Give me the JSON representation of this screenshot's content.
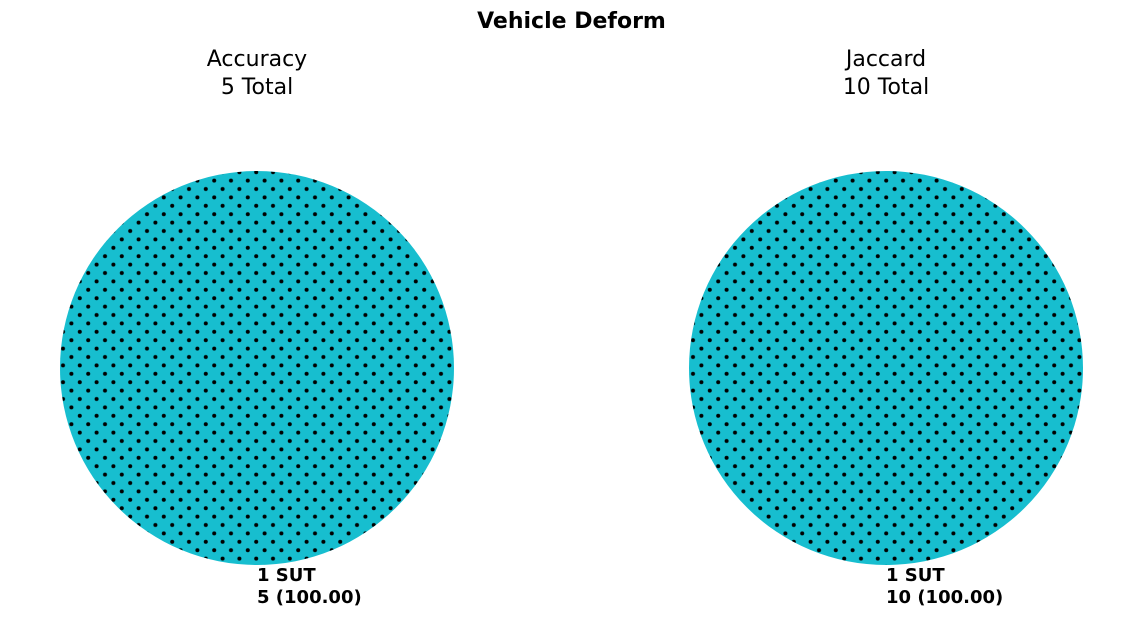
{
  "title": "Vehicle Deform",
  "colors": {
    "slice": "#17becf",
    "hatch_dot": "#000000",
    "background": "#ffffff"
  },
  "chart_data": [
    {
      "type": "pie",
      "title": "Accuracy",
      "subtitle": "5 Total",
      "slices": [
        {
          "label": "1 SUT",
          "value": 5,
          "value_label": "5 (100.00)",
          "color": "#17becf",
          "hatch": "dots"
        }
      ]
    },
    {
      "type": "pie",
      "title": "Jaccard",
      "subtitle": "10 Total",
      "slices": [
        {
          "label": "1 SUT",
          "value": 10,
          "value_label": "10 (100.00)",
          "color": "#17becf",
          "hatch": "dots"
        }
      ]
    }
  ]
}
